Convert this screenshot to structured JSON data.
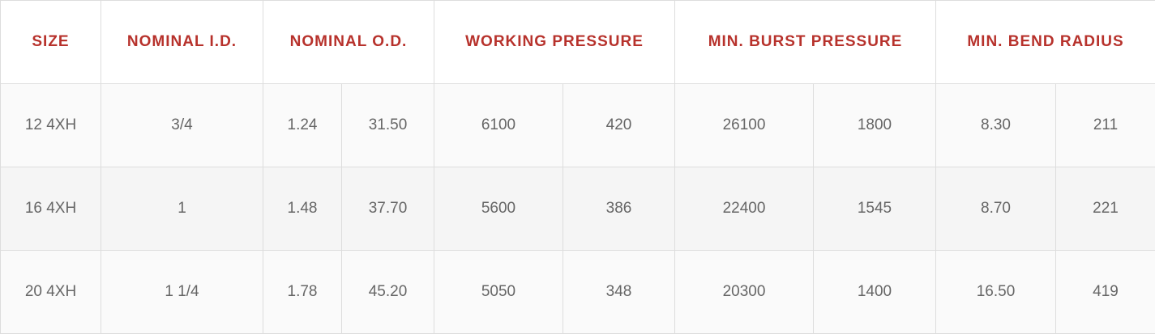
{
  "headers": [
    "SIZE",
    "NOMINAL I.D.",
    "NOMINAL O.D.",
    "WORKING PRESSURE",
    "MIN. BURST PRESSURE",
    "MIN. BEND RADIUS"
  ],
  "rows": [
    [
      "12 4XH",
      "3/4",
      "1.24",
      "31.50",
      "6100",
      "420",
      "26100",
      "1800",
      "8.30",
      "211"
    ],
    [
      "16 4XH",
      "1",
      "1.48",
      "37.70",
      "5600",
      "386",
      "22400",
      "1545",
      "8.70",
      "221"
    ],
    [
      "20 4XH",
      "1 1/4",
      "1.78",
      "45.20",
      "5050",
      "348",
      "20300",
      "1400",
      "16.50",
      "419"
    ]
  ],
  "colors": {
    "header_text": "#b7322c",
    "cell_text": "#666666",
    "border": "#dddddd",
    "row_bg": "#fafafa",
    "row_alt_bg": "#f5f5f5"
  }
}
